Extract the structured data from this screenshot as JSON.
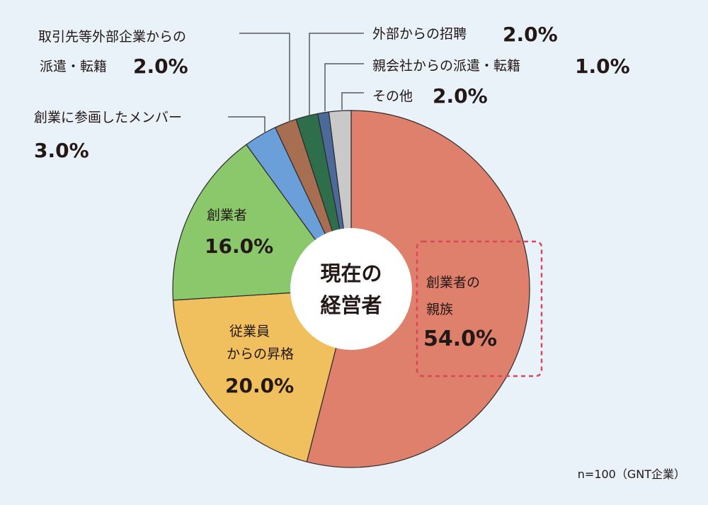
{
  "chart_data": {
    "type": "pie",
    "variant": "donut",
    "center_label": [
      "現在の",
      "経営者"
    ],
    "note": "n=100（GNT企業）",
    "slices": [
      {
        "label_lines": [
          "創業者の",
          "親族"
        ],
        "pct_text": "54.0%",
        "value": 54.0,
        "color": "#df806c"
      },
      {
        "label_lines": [
          "従業員",
          "からの昇格"
        ],
        "pct_text": "20.0%",
        "value": 20.0,
        "color": "#f0bf5e"
      },
      {
        "label_lines": [
          "創業者"
        ],
        "pct_text": "16.0%",
        "value": 16.0,
        "color": "#8bc86c"
      },
      {
        "label_lines": [
          "創業に参画したメンバー"
        ],
        "pct_text": "3.0%",
        "value": 3.0,
        "color": "#6a9fd9"
      },
      {
        "label_lines": [
          "取引先等外部企業からの",
          "派遣・転籍"
        ],
        "pct_text": "2.0%",
        "value": 2.0,
        "color": "#a86e51"
      },
      {
        "label_lines": [
          "外部からの招聘"
        ],
        "pct_text": "2.0%",
        "value": 2.0,
        "color": "#2f6e4b"
      },
      {
        "label_lines": [
          "親会社からの派遣・転籍"
        ],
        "pct_text": "1.0%",
        "value": 1.0,
        "color": "#4b6a9a"
      },
      {
        "label_lines": [
          "その他"
        ],
        "pct_text": "2.0%",
        "value": 2.0,
        "color": "#c9c9c9"
      }
    ],
    "highlight_slice": 0,
    "highlight_color": "#d9475f"
  }
}
